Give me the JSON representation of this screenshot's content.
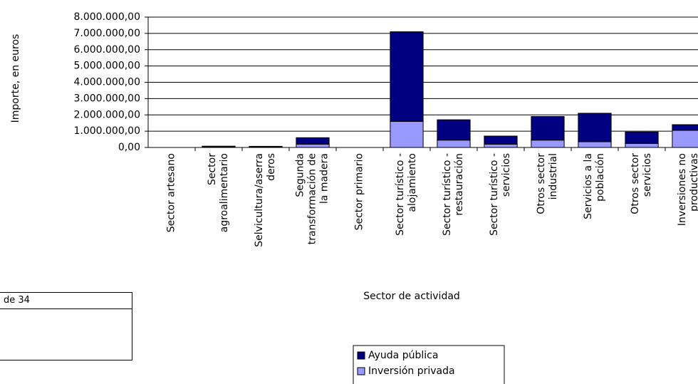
{
  "chart_data": {
    "type": "stacked_bar",
    "y_label": "Importe, en euros",
    "x_label": "Sector de actividad",
    "categories": [
      "Sector artesano",
      "Sector\nagroalimentario",
      "Selvicultura/aserra\nderos",
      "Segunda\ntransformación de\nla madera",
      "Sector primario",
      "Sector turístico -\nalojamiento",
      "Sector turístico -\nrestauración",
      "Sector turístico -\nservicios",
      "Otros sector\nindustrial",
      "Servicios a la\npoblación",
      "Otros sector\nservicios",
      "Inversiones no\nproductivas"
    ],
    "series": [
      {
        "name": "Inversión privada",
        "color": "#9999ff",
        "values": [
          0,
          20000,
          20000,
          200000,
          0,
          1600000,
          450000,
          200000,
          450000,
          350000,
          250000,
          1050000
        ]
      },
      {
        "name": "Ayuda pública",
        "color": "#000080",
        "values": [
          0,
          60000,
          50000,
          400000,
          0,
          5500000,
          1250000,
          500000,
          1450000,
          1750000,
          700000,
          350000
        ]
      }
    ],
    "ylim": [
      0,
      8000000
    ],
    "yticks": [
      {
        "value": 0,
        "label": "0,00"
      },
      {
        "value": 1000000,
        "label": "1.000.000,00"
      },
      {
        "value": 2000000,
        "label": "2.000.000,00"
      },
      {
        "value": 3000000,
        "label": "3.000.000,00"
      },
      {
        "value": 4000000,
        "label": "4.000.000,00"
      },
      {
        "value": 5000000,
        "label": "5.000.000,00"
      },
      {
        "value": 6000000,
        "label": "6.000.000,00"
      },
      {
        "value": 7000000,
        "label": "7.000.000,00"
      },
      {
        "value": 8000000,
        "label": "8.000.000,00"
      }
    ],
    "grid": true
  },
  "footer_text": "de 34"
}
